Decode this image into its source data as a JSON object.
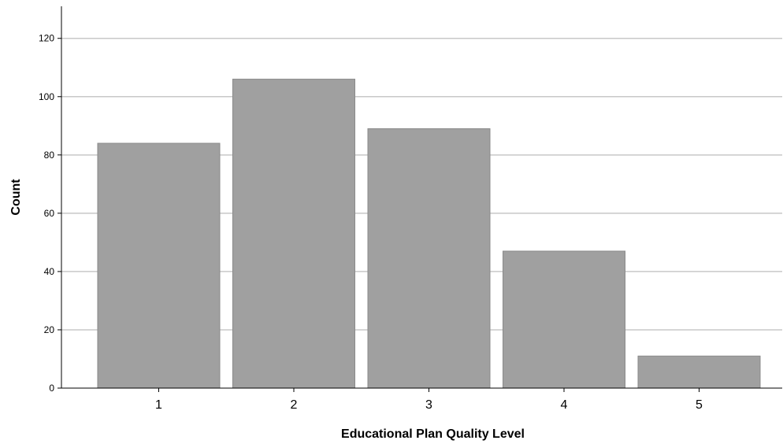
{
  "chart_data": {
    "type": "bar",
    "categories": [
      "1",
      "2",
      "3",
      "4",
      "5"
    ],
    "values": [
      84,
      106,
      89,
      47,
      11
    ],
    "title": "",
    "xlabel": "Educational Plan Quality Level",
    "ylabel": "Count",
    "ylim": [
      0,
      131
    ],
    "yticks": [
      0,
      20,
      40,
      60,
      80,
      100,
      120
    ],
    "grid": true,
    "legend": "none",
    "colors": {
      "bar_fill": "#a0a0a0",
      "bar_stroke": "#8a8a8a",
      "grid": "#c8c8c8",
      "axis": "#000000"
    }
  }
}
